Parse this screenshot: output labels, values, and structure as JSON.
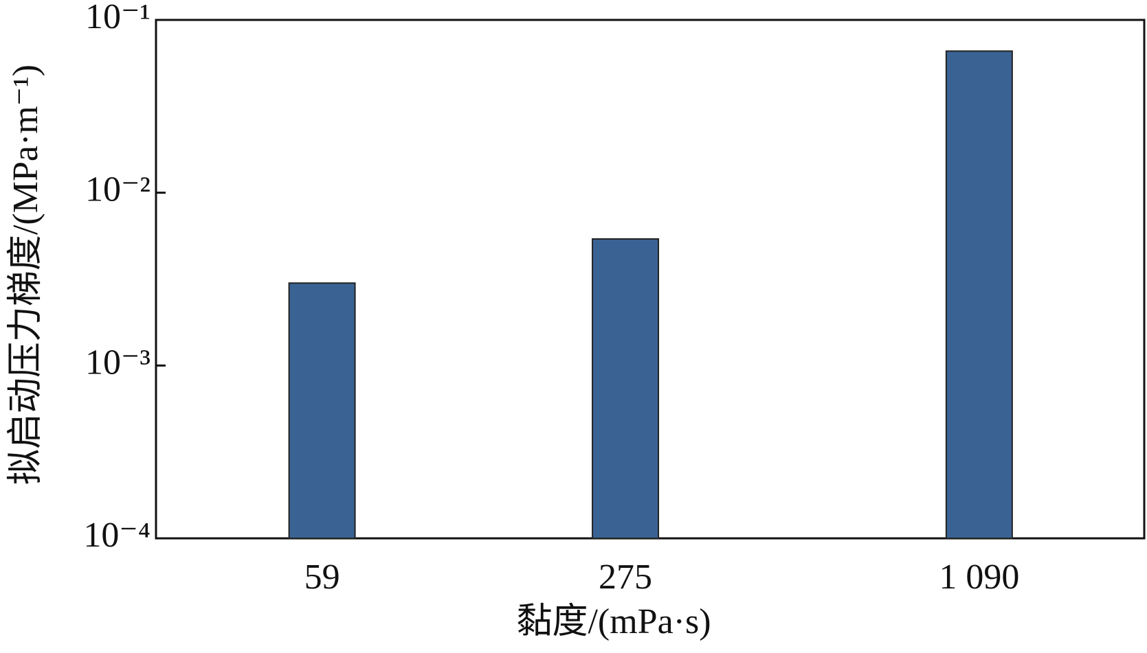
{
  "chart_data": {
    "type": "bar",
    "log_scale": true,
    "x_label": "黏度/(mPa·s)",
    "y_label": "拟启动压力梯度/(MPa·m⁻¹)",
    "categories": [
      "59",
      "275",
      "1 090"
    ],
    "values": [
      0.003,
      0.0054,
      0.066
    ],
    "color": "#3a6394",
    "ylim": [
      0.0001,
      0.1
    ],
    "yticks": [
      {
        "value": 0.0001,
        "label": "10⁻⁴"
      },
      {
        "value": 0.001,
        "label": "10⁻³"
      },
      {
        "value": 0.01,
        "label": "10⁻²"
      },
      {
        "value": 0.1,
        "label": "10⁻¹"
      }
    ]
  }
}
